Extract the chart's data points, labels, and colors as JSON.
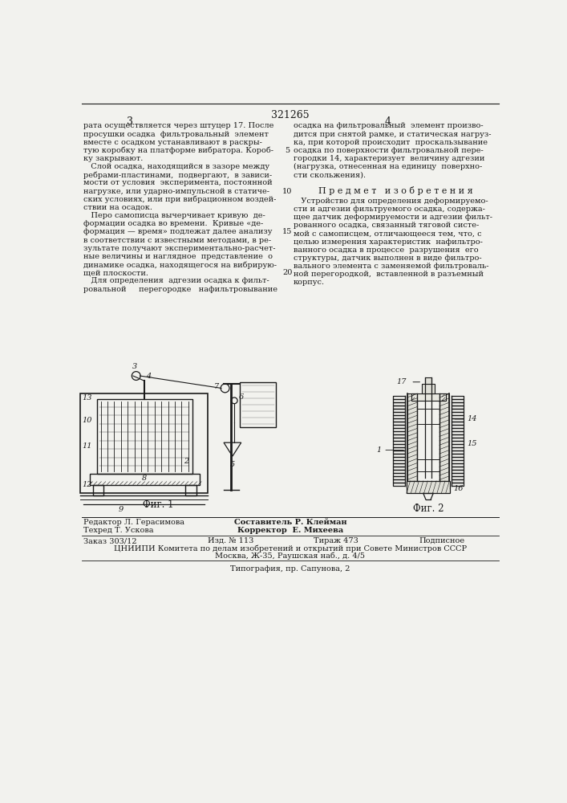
{
  "page_number": "321265",
  "col_left": "3",
  "col_right": "4",
  "bg_color": "#f2f2ee",
  "text_color": "#1a1a1a",
  "text_left_col": [
    "рата осуществляется через штуцер 17. После",
    "просушки осадка  фильтровальный  элемент",
    "вместе с осадком устанавливают в раскры-",
    "тую коробку на платформе вибратора. Короб-",
    "ку закрывают.",
    "   Слой осадка, находящийся в зазоре между",
    "ребрами-пластинами,  подвергают,  в зависи-",
    "мости от условия  эксперимента, постоянной",
    "нагрузке, или ударно-импульсной в статиче-",
    "ских условиях, или при вибрационном воздей-",
    "ствии на осадок.",
    "   Перо самописца вычерчивает кривую  де-",
    "формации осадка во времени.  Кривые «де-",
    "формация — время» подлежат далее анализу",
    "в соответствии с известными методами, в ре-",
    "зультате получают экспериментально-расчет-",
    "ные величины и наглядное  представление  о",
    "динамике осадка, находящегося на вибрирую-",
    "щей плоскости.",
    "   Для определения  адгезии осадка к фильт-",
    "ровальной     перегородке   нафильтровывание"
  ],
  "text_right_col_before": [
    "осадка на фильтровальный  элемент произво-",
    "дится при снятой рамке, и статическая нагруз-",
    "ка, при которой происходит  проскальзывание",
    "осадка по поверхности фильтровальной пере-",
    "городки 14, характеризует  величину адгезии",
    "(нагрузка, отнесенная на единицу  поверхно-",
    "сти скольжения)."
  ],
  "heading": "П р е д м е т   и з о б р е т е н и я",
  "text_right_col_after": [
    "   Устройство для определения деформируемо-",
    "сти и адгезии фильтруемого осадка, содержа-",
    "щее датчик деформируемости и адгезии фильт-",
    "рованного осадка, связанный тяговой систе-",
    "мой с самописцем, отличающееся тем, что, с",
    "целью измерения характеристик  нафильтро-",
    "ванного осадка в процессе  разрушения  его",
    "структуры, датчик выполнен в виде фильтро-",
    "вального элемента с заменяемой фильтроваль-",
    "ной перегородкой,  вставленной в разъемный",
    "корпус."
  ],
  "line_numbers": [
    5,
    10,
    15,
    20
  ],
  "fig1_label": "Фиг. 1",
  "fig2_label": "Фиг. 2",
  "footer_editor": "Редактор Л. Герасимова",
  "footer_composer": "Составитель Р. Клейман",
  "footer_tech": "Техред Т. Ускова",
  "footer_corrector": "Корректор  Е. Михеева",
  "footer_order": "Заказ 303/12",
  "footer_issue": "Изд. № 113",
  "footer_print": "Тираж 473",
  "footer_sign": "Подписное",
  "footer_org": "ЦНИИПИ Комитета по делам изобретений и открытий при Совете Министров СССР",
  "footer_address": "Москва, Ж-35, Раушская наб., д. 4/5",
  "footer_typography": "Типография, пр. Сапунова, 2"
}
